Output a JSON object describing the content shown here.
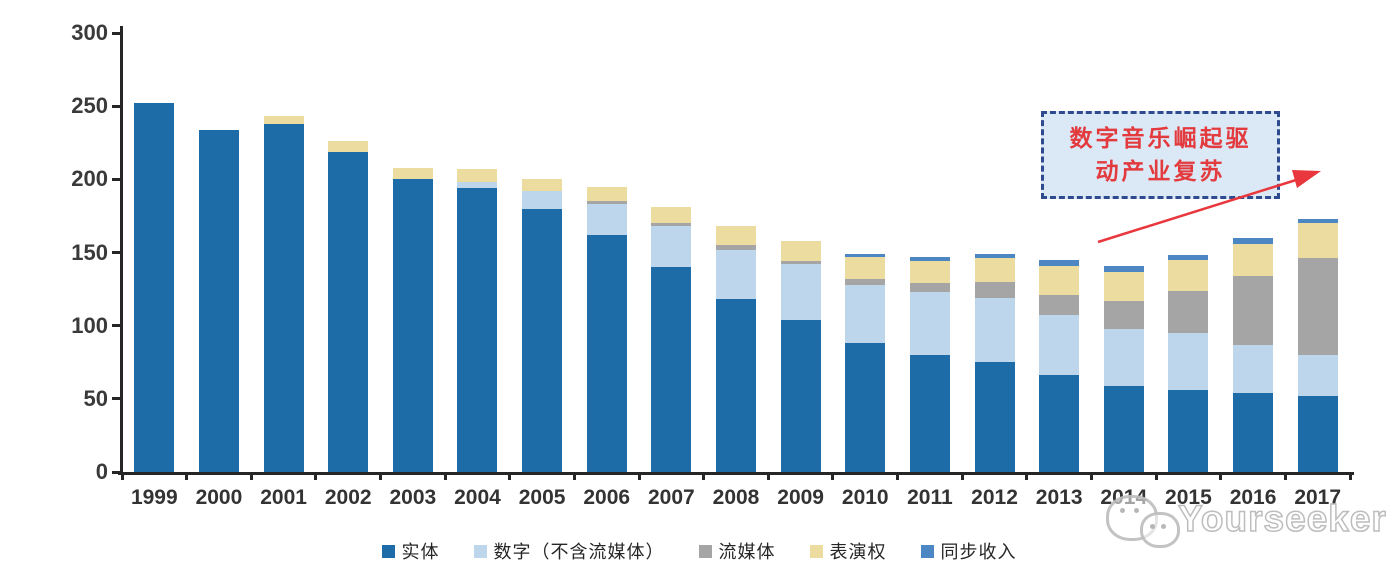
{
  "chart_data": {
    "type": "bar",
    "stacked": true,
    "title": "",
    "xlabel": "",
    "ylabel": "",
    "ylim": [
      0,
      300
    ],
    "yticks": [
      0,
      50,
      100,
      150,
      200,
      250,
      300
    ],
    "grid": false,
    "legend_position": "bottom",
    "categories": [
      "1999",
      "2000",
      "2001",
      "2002",
      "2003",
      "2004",
      "2005",
      "2006",
      "2007",
      "2008",
      "2009",
      "2010",
      "2011",
      "2012",
      "2013",
      "2014",
      "2015",
      "2016",
      "2017"
    ],
    "series": [
      {
        "name": "实体",
        "color": "#1d6ca8",
        "values": [
          252,
          234,
          238,
          219,
          200,
          194,
          180,
          162,
          140,
          118,
          104,
          88,
          80,
          75,
          66,
          59,
          56,
          54,
          52
        ]
      },
      {
        "name": "数字（不含流媒体）",
        "color": "#bed6ec",
        "values": [
          0,
          0,
          0,
          0,
          0,
          4,
          12,
          21,
          28,
          34,
          38,
          40,
          43,
          44,
          41,
          39,
          39,
          33,
          28
        ]
      },
      {
        "name": "流媒体",
        "color": "#a5a5a5",
        "values": [
          0,
          0,
          0,
          0,
          0,
          0,
          0,
          2,
          2,
          3,
          2,
          4,
          6,
          11,
          14,
          19,
          29,
          47,
          66
        ]
      },
      {
        "name": "表演权",
        "color": "#ecdc9f",
        "values": [
          0,
          0,
          5,
          7,
          8,
          9,
          8,
          10,
          11,
          13,
          14,
          15,
          15,
          16,
          20,
          20,
          21,
          22,
          24
        ]
      },
      {
        "name": "同步收入",
        "color": "#4d87c3",
        "values": [
          0,
          0,
          0,
          0,
          0,
          0,
          0,
          0,
          0,
          0,
          0,
          2,
          3,
          3,
          4,
          4,
          3,
          4,
          3
        ]
      }
    ]
  },
  "annotation": {
    "line1": "数字音乐崛起驱",
    "line2": "动产业复苏",
    "text_color": "#e33a3e",
    "box_fill": "#dbe8f6",
    "box_border": "#2f4b8f"
  },
  "arrow": {
    "color": "#e8383d"
  },
  "watermark": {
    "text": "Yourseeker",
    "logo": "wechat-bubbles-icon"
  },
  "colors": {
    "axis": "#262626",
    "tick_label": "#3a3a3a",
    "background": "#ffffff"
  }
}
